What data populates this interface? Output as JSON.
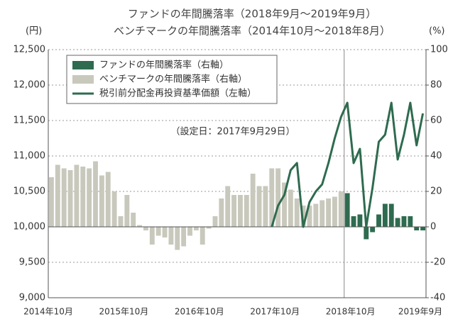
{
  "chart_data": {
    "type": "bar",
    "title": "ファンドの年間騰落率（2018年9月〜2019年9月）",
    "subtitle": "ベンチマークの年間騰落率（2014年10月〜2018年8月）",
    "y_label": "(円)",
    "y2_label": "(%)",
    "annotation": "（設定日：2017年9月29日）",
    "categories": [
      "2014年10月",
      null,
      null,
      null,
      null,
      null,
      null,
      null,
      null,
      null,
      null,
      null,
      "2015年10月",
      null,
      null,
      null,
      null,
      null,
      null,
      null,
      null,
      null,
      null,
      null,
      "2016年10月",
      null,
      null,
      null,
      null,
      null,
      null,
      null,
      null,
      null,
      null,
      null,
      "2017年10月",
      null,
      null,
      null,
      null,
      null,
      null,
      null,
      null,
      null,
      null,
      null,
      "2018年10月",
      null,
      null,
      null,
      null,
      null,
      null,
      null,
      null,
      null,
      null,
      "2019年9月"
    ],
    "series": [
      {
        "name": "ファンドの年間騰落率（右軸）",
        "type": "bar",
        "axis": "y2",
        "color": "#2e6b4f",
        "values": [
          null,
          null,
          null,
          null,
          null,
          null,
          null,
          null,
          null,
          null,
          null,
          null,
          null,
          null,
          null,
          null,
          null,
          null,
          null,
          null,
          null,
          null,
          null,
          null,
          null,
          null,
          null,
          null,
          null,
          null,
          null,
          null,
          null,
          null,
          null,
          null,
          null,
          null,
          null,
          null,
          null,
          null,
          null,
          null,
          null,
          null,
          null,
          19,
          6,
          7,
          -7,
          -3,
          7,
          13,
          13,
          5,
          6,
          6,
          -2,
          -2
        ]
      },
      {
        "name": "ベンチマークの年間騰落率（右軸）",
        "type": "bar",
        "axis": "y2",
        "color": "#c8c8bc",
        "values": [
          28,
          35,
          33,
          32,
          35,
          34,
          33,
          37,
          29,
          31,
          20,
          6,
          18,
          8,
          1,
          -2,
          -10,
          -5,
          -6,
          -10,
          -13,
          -11,
          -5,
          -2,
          -10,
          -1,
          6,
          16,
          23,
          18,
          18,
          18,
          30,
          23,
          23,
          33,
          33,
          25,
          21,
          16,
          12,
          12,
          13,
          15,
          16,
          17,
          20,
          null,
          null,
          null,
          null,
          null,
          null,
          null,
          null,
          null,
          null,
          null,
          null,
          null
        ]
      },
      {
        "name": "税引前分配金再投資基準価額（左軸）",
        "type": "line",
        "axis": "y",
        "color": "#2e6b4f",
        "values": [
          null,
          null,
          null,
          null,
          null,
          null,
          null,
          null,
          null,
          null,
          null,
          null,
          null,
          null,
          null,
          null,
          null,
          null,
          null,
          null,
          null,
          null,
          null,
          null,
          null,
          null,
          null,
          null,
          null,
          null,
          null,
          null,
          null,
          null,
          null,
          10000,
          10300,
          10450,
          10800,
          10900,
          10000,
          10350,
          10500,
          10600,
          10900,
          11250,
          11550,
          11750,
          10900,
          11100,
          10000,
          10550,
          11200,
          11300,
          11750,
          10950,
          11300,
          11750,
          11150,
          11600
        ]
      }
    ],
    "ylim": [
      9000,
      12500
    ],
    "yticks": [
      {
        "value": 9000,
        "label": "9,000"
      },
      {
        "value": 9500,
        "label": "9,500"
      },
      {
        "value": 10000,
        "label": "10,000"
      },
      {
        "value": 10500,
        "label": "10,500"
      },
      {
        "value": 11000,
        "label": "11,000"
      },
      {
        "value": 11500,
        "label": "11,500"
      },
      {
        "value": 12000,
        "label": "12,000"
      },
      {
        "value": 12500,
        "label": "12,500"
      }
    ],
    "y2lim": [
      -40,
      100
    ],
    "y2ticks": [
      -40,
      -20,
      0,
      20,
      40,
      60,
      80,
      100
    ],
    "grid": true
  }
}
